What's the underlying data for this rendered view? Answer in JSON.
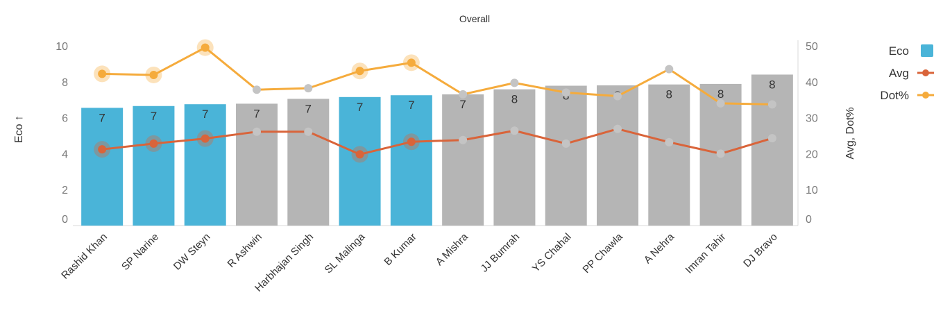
{
  "chart_data": {
    "type": "bar",
    "title": "Overall",
    "categories": [
      "Rashid Khan",
      "SP Narine",
      "DW Steyn",
      "R Ashwin",
      "Harbhajan Singh",
      "SL Malinga",
      "B Kumar",
      "A Mishra",
      "JJ Bumrah",
      "YS Chahal",
      "PP Chawla",
      "A Nehra",
      "Imran Tahir",
      "DJ Bravo"
    ],
    "series": [
      {
        "name": "Eco",
        "kind": "bar",
        "axis": "left",
        "color": "#4ab4d8",
        "values": [
          6.55,
          6.65,
          6.75,
          6.78,
          7.05,
          7.15,
          7.25,
          7.3,
          7.58,
          7.78,
          7.8,
          7.85,
          7.88,
          8.4
        ],
        "labels": [
          "7",
          "7",
          "7",
          "7",
          "7",
          "7",
          "7",
          "7",
          "8",
          "8",
          "8",
          "8",
          "8",
          "8"
        ]
      },
      {
        "name": "Avg",
        "kind": "line",
        "axis": "right",
        "color": "#d9643a",
        "values": [
          21.2,
          22.8,
          24.2,
          26.1,
          26.1,
          19.8,
          23.3,
          23.8,
          26.4,
          22.8,
          26.9,
          23.2,
          20.0,
          24.3
        ]
      },
      {
        "name": "Dot%",
        "kind": "line",
        "axis": "right",
        "color": "#f5ab3c",
        "values": [
          42.2,
          41.9,
          49.5,
          37.8,
          38.2,
          43.0,
          45.3,
          36.5,
          39.7,
          37.0,
          36.0,
          43.5,
          34.0,
          33.7
        ]
      }
    ],
    "highlighted": [
      true,
      true,
      true,
      false,
      false,
      true,
      true,
      false,
      false,
      false,
      false,
      false,
      false,
      false
    ],
    "ylabel_left": "Eco ↑",
    "ylabel_right": "Avg, Dot%",
    "ylim_left": [
      0,
      10
    ],
    "ylim_right": [
      0,
      50
    ],
    "yticks_left": [
      "0",
      "2",
      "4",
      "6",
      "8",
      "10"
    ],
    "yticks_right": [
      "0",
      "10",
      "20",
      "30",
      "40",
      "50"
    ],
    "highlight_color": "#4ab4d8",
    "muted_color": "#b5b5b5",
    "legend_position": "top-right"
  }
}
